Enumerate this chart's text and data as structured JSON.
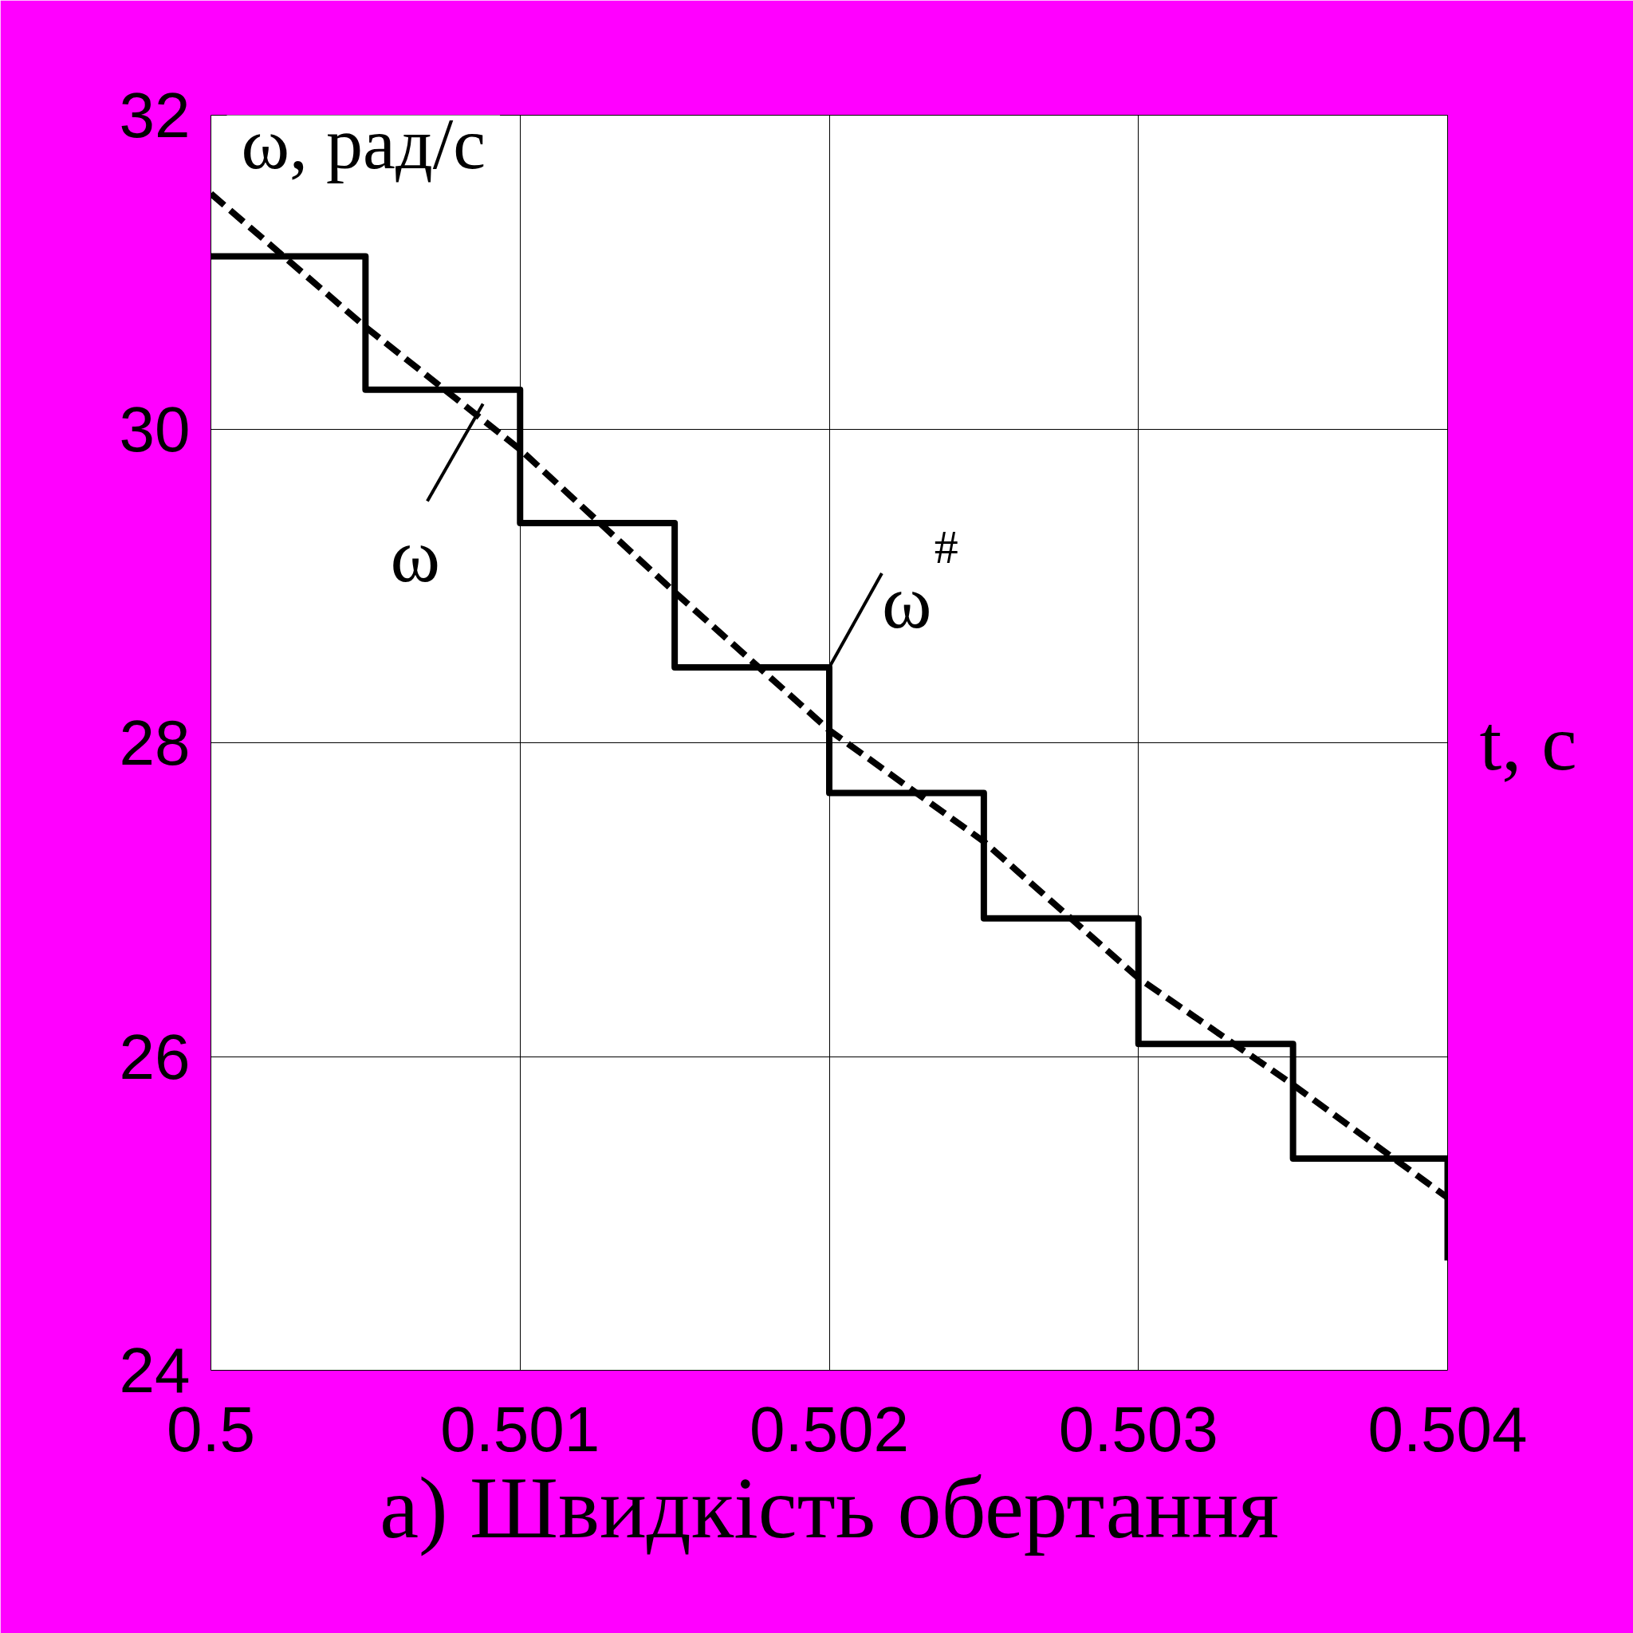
{
  "chart_data": {
    "type": "step",
    "title": "а) Швидкість обертання",
    "xlabel": "t, с",
    "ylabel": "ω, рад/с",
    "xlim": [
      0.5,
      0.504
    ],
    "ylim": [
      24,
      32
    ],
    "xticks": [
      0.5,
      0.501,
      0.502,
      0.503,
      0.504
    ],
    "yticks": [
      24,
      26,
      28,
      30,
      32
    ],
    "grid": true,
    "series": [
      {
        "name": "ω",
        "type": "line",
        "line_style": "dashed",
        "color": "#000000",
        "x": [
          0.5,
          0.5005,
          0.501,
          0.5015,
          0.502,
          0.5025,
          0.503,
          0.5035,
          0.504
        ],
        "values": [
          31.5,
          30.65,
          29.87,
          28.96,
          28.08,
          27.37,
          26.5,
          25.82,
          25.1
        ]
      },
      {
        "name": "ω$^{#}$",
        "line_style": "solid",
        "color": "#000000",
        "x": [
          0.5,
          0.5005,
          0.501,
          0.5015,
          0.502,
          0.5025,
          0.503,
          0.5035,
          0.504
        ],
        "values": [
          31.1,
          30.25,
          29.4,
          28.48,
          27.68,
          26.88,
          26.08,
          25.35,
          24.7
        ]
      }
    ]
  }
}
